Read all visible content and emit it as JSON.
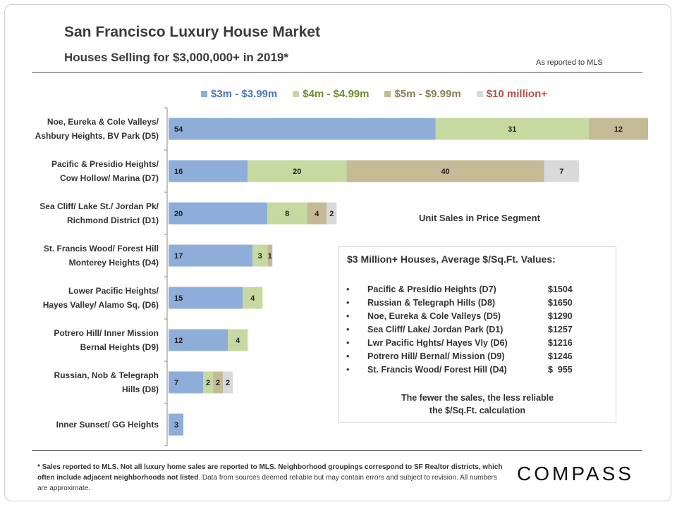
{
  "header": {
    "title": "San Francisco Luxury House Market",
    "subtitle": "Houses Selling for $3,000,000+ in 2019*",
    "reported": "As reported to MLS"
  },
  "chart_data": {
    "type": "bar",
    "orientation": "horizontal",
    "stacked": true,
    "categories": [
      [
        "Noe, Eureka & Cole Valleys/",
        "Ashbury Heights, BV Park (D5)"
      ],
      [
        "Pacific & Presidio Heights/",
        "Cow Hollow/ Marina (D7)"
      ],
      [
        "Sea Cliff/ Lake St./ Jordan Pk/",
        "Richmond District (D1)"
      ],
      [
        "St. Francis Wood/ Forest Hill",
        "Monterey Heights (D4)"
      ],
      [
        "Lower Pacific Heights/",
        "Hayes Valley/ Alamo Sq. (D6)"
      ],
      [
        "Potrero Hill/ Inner Mission",
        "Bernal Heights (D9)"
      ],
      [
        "Russian, Nob & Telegraph",
        "Hills (D8)"
      ],
      [
        "Inner Sunset/ GG Heights"
      ]
    ],
    "series": [
      {
        "name": "$3m - $3.99m",
        "color": "#8EADD8",
        "text_color": "#4A77B4",
        "values": [
          54,
          16,
          20,
          17,
          15,
          12,
          7,
          3
        ]
      },
      {
        "name": "$4m - $4.99m",
        "color": "#C5D9A0",
        "text_color": "#6E8B2E",
        "values": [
          31,
          20,
          8,
          3,
          4,
          4,
          2,
          0
        ]
      },
      {
        "name": "$5m - $9.99m",
        "color": "#C4BA96",
        "text_color": "#8A7D55",
        "values": [
          12,
          40,
          4,
          1,
          0,
          0,
          2,
          0
        ]
      },
      {
        "name": "$10 million+",
        "color": "#D9D9D9",
        "text_color": "#B5504A",
        "values": [
          0,
          7,
          2,
          0,
          0,
          0,
          2,
          0
        ]
      }
    ],
    "axis_label": "Unit Sales in Price Segment",
    "xlim": [
      0,
      97
    ]
  },
  "info_box": {
    "title": "$3 Million+ Houses, Average $/Sq.Ft. Values:",
    "bullet": "•",
    "rows": [
      {
        "name": "Pacific & Presidio Heights (D7)",
        "value": "$1504"
      },
      {
        "name": "Russian & Telegraph Hills (D8)",
        "value": "$1650"
      },
      {
        "name": "Noe, Eureka & Cole Valleys (D5)",
        "value": "$1290"
      },
      {
        "name": "Sea Cliff/ Lake/ Jordan Park (D1)",
        "value": "$1257"
      },
      {
        "name": "Lwr Pacific Hghts/ Hayes Vly (D6)",
        "value": "$1216"
      },
      {
        "name": "Potrero Hill/ Bernal/ Mission (D9)",
        "value": "$1246"
      },
      {
        "name": "St. Francis Wood/ Forest Hill (D4)",
        "value": "$  955"
      }
    ],
    "note_line1": "The fewer the sales, the less reliable",
    "note_line2": "the $/Sq.Ft. calculation"
  },
  "footer": {
    "footnote_bold": "* Sales reported to MLS. Not all luxury home sales are reported to MLS. Neighborhood groupings correspond to SF Realtor districts, which often include adjacent neighborhoods not listed",
    "footnote_rest": ". Data from sources deemed reliable but may contain errors and subject to revision. All numbers are approximate.",
    "logo": "COMPASS"
  }
}
